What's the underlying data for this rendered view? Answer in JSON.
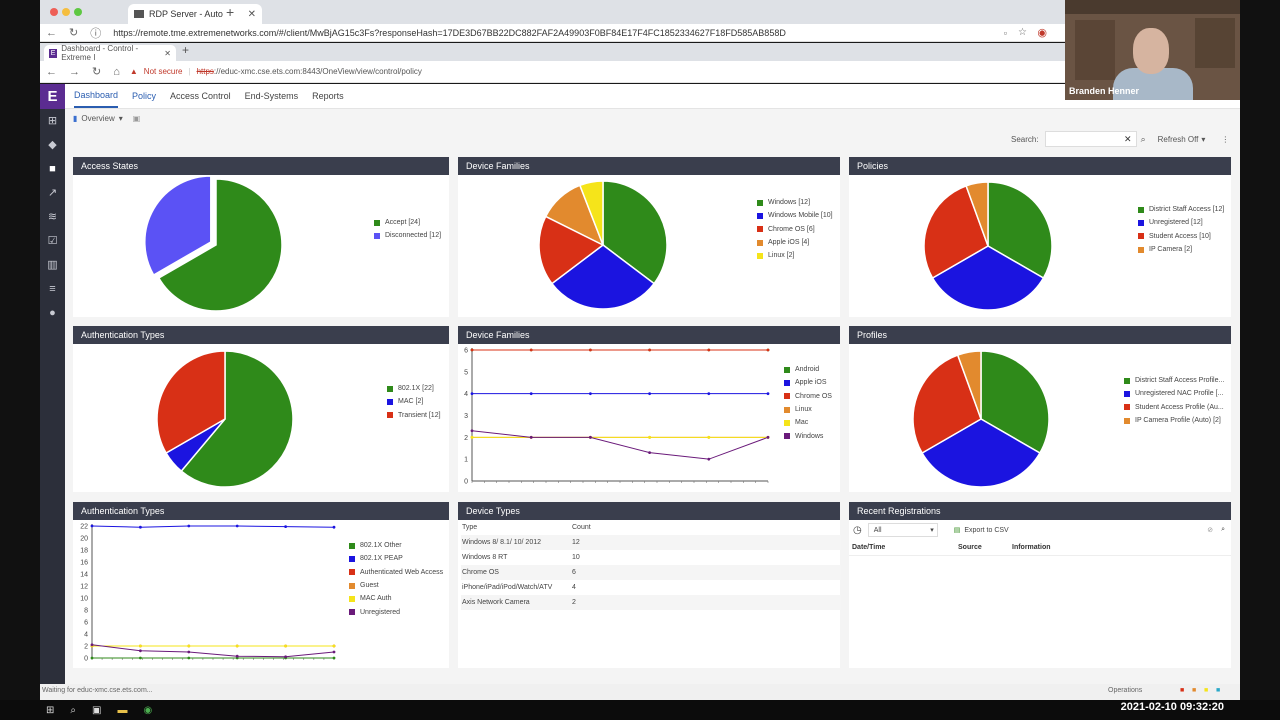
{
  "outer_browser": {
    "tab_title": "RDP Server - Auto",
    "url": "https://remote.tme.extremenetworks.com/#/client/MwBjAG15c3Fs?responseHash=17DE3D67BB22DC882FAF2A49903F0BF84E17F4FC1852334627F18FD585AB858D"
  },
  "inner_browser": {
    "tab_title": "Dashboard - Control - Extreme I",
    "not_secure": "Not secure",
    "url_scheme": "https",
    "url_rest": "://educ-xmc.cse.ets.com:8443/OneView/view/control/policy"
  },
  "app": {
    "logo": "E",
    "top_nav": [
      "Dashboard",
      "Policy",
      "Access Control",
      "End-Systems",
      "Reports"
    ],
    "overview_label": "Overview",
    "search_label": "Search:",
    "refresh_label": "Refresh Off"
  },
  "panels": {
    "access_states": {
      "title": "Access States",
      "chart_data": {
        "type": "pie",
        "categories": [
          "Accept [24]",
          "Disconnected [12]"
        ],
        "values": [
          24,
          12
        ],
        "colors": [
          "#2f8a1a",
          "#5b52f5"
        ]
      }
    },
    "device_families_pie": {
      "title": "Device Families",
      "chart_data": {
        "type": "pie",
        "categories": [
          "Windows [12]",
          "Windows Mobile [10]",
          "Chrome OS [6]",
          "Apple iOS [4]",
          "Linux [2]"
        ],
        "values": [
          12,
          10,
          6,
          4,
          2
        ],
        "colors": [
          "#2f8a1a",
          "#1b14e0",
          "#d83016",
          "#e28a2e",
          "#f5e41a"
        ]
      }
    },
    "policies": {
      "title": "Policies",
      "chart_data": {
        "type": "pie",
        "categories": [
          "District Staff Access [12]",
          "Unregistered [12]",
          "Student Access [10]",
          "IP Camera [2]"
        ],
        "values": [
          12,
          12,
          10,
          2
        ],
        "colors": [
          "#2f8a1a",
          "#1b14e0",
          "#d83016",
          "#e28a2e"
        ]
      }
    },
    "auth_types_pie": {
      "title": "Authentication Types",
      "chart_data": {
        "type": "pie",
        "categories": [
          "802.1X [22]",
          "MAC [2]",
          "Transient [12]"
        ],
        "values": [
          22,
          2,
          12
        ],
        "colors": [
          "#2f8a1a",
          "#1b14e0",
          "#d83016"
        ]
      }
    },
    "device_families_line": {
      "title": "Device Families",
      "chart_data": {
        "type": "line",
        "ylim": [
          0,
          6
        ],
        "yticks": [
          "0",
          "1",
          "2",
          "3",
          "4",
          "5",
          "6"
        ],
        "n_points": 6,
        "series": [
          {
            "name": "Android",
            "color": "#2f8a1a",
            "values": [
              6,
              6,
              6,
              6,
              6,
              6
            ]
          },
          {
            "name": "Apple iOS",
            "color": "#1b14e0",
            "values": [
              4,
              4,
              4,
              4,
              4,
              4
            ]
          },
          {
            "name": "Chrome OS",
            "color": "#d83016",
            "values": [
              6,
              6,
              6,
              6,
              6,
              6
            ]
          },
          {
            "name": "Linux",
            "color": "#e28a2e",
            "values": [
              2,
              2,
              2,
              2,
              2,
              2
            ]
          },
          {
            "name": "Mac",
            "color": "#f5e41a",
            "values": [
              2,
              2,
              2,
              2,
              2,
              2
            ]
          },
          {
            "name": "Windows",
            "color": "#6a1a7a",
            "values": [
              2.3,
              2,
              2,
              1.3,
              1,
              2
            ]
          }
        ]
      }
    },
    "profiles": {
      "title": "Profiles",
      "chart_data": {
        "type": "pie",
        "categories": [
          "District Staff Access Profile...",
          "Unregistered NAC Profile [...",
          "Student Access Profile (Au...",
          "IP Camera Profile (Auto) [2]"
        ],
        "values": [
          12,
          12,
          10,
          2
        ],
        "colors": [
          "#2f8a1a",
          "#1b14e0",
          "#d83016",
          "#e28a2e"
        ]
      }
    },
    "auth_types_line": {
      "title": "Authentication Types",
      "chart_data": {
        "type": "line",
        "ylim": [
          0,
          22
        ],
        "yticks": [
          "0",
          "2",
          "4",
          "6",
          "8",
          "10",
          "12",
          "14",
          "16",
          "18",
          "20",
          "22"
        ],
        "n_points": 6,
        "series": [
          {
            "name": "802.1X Other",
            "color": "#2f8a1a",
            "values": [
              0,
              0,
              0,
              0,
              0,
              0
            ]
          },
          {
            "name": "802.1X PEAP",
            "color": "#1b14e0",
            "values": [
              22,
              21.8,
              22,
              22,
              21.9,
              21.8
            ]
          },
          {
            "name": "Authenticated Web Access",
            "color": "#d83016",
            "values": [
              2,
              2,
              2,
              2,
              2,
              2
            ]
          },
          {
            "name": "Guest",
            "color": "#e28a2e",
            "values": [
              2,
              2,
              2,
              2,
              2,
              2
            ]
          },
          {
            "name": "MAC Auth",
            "color": "#f5e41a",
            "values": [
              2,
              2,
              2,
              2,
              2,
              2
            ]
          },
          {
            "name": "Unregistered",
            "color": "#6a1a7a",
            "values": [
              2.2,
              1.2,
              1,
              0.3,
              0.2,
              1
            ]
          }
        ]
      }
    },
    "device_types": {
      "title": "Device Types",
      "columns": [
        "Type",
        "Count"
      ],
      "rows": [
        [
          "Windows 8/ 8.1/ 10/ 2012",
          "12"
        ],
        [
          "Windows 8 RT",
          "10"
        ],
        [
          "Chrome OS",
          "6"
        ],
        [
          "iPhone/iPad/iPod/Watch/ATV",
          "4"
        ],
        [
          "Axis Network Camera",
          "2"
        ]
      ]
    },
    "recent_registrations": {
      "title": "Recent Registrations",
      "filter": "All",
      "export": "Export to CSV",
      "columns": [
        "Date/Time",
        "Source",
        "Information"
      ]
    }
  },
  "webcam": {
    "name": "Branden Henner"
  },
  "status": {
    "left": "Waiting for educ-xmc.cse.ets.com...",
    "operations": "Operations"
  },
  "taskbar": {
    "timestamp": "2021-02-10  09:32:20"
  }
}
